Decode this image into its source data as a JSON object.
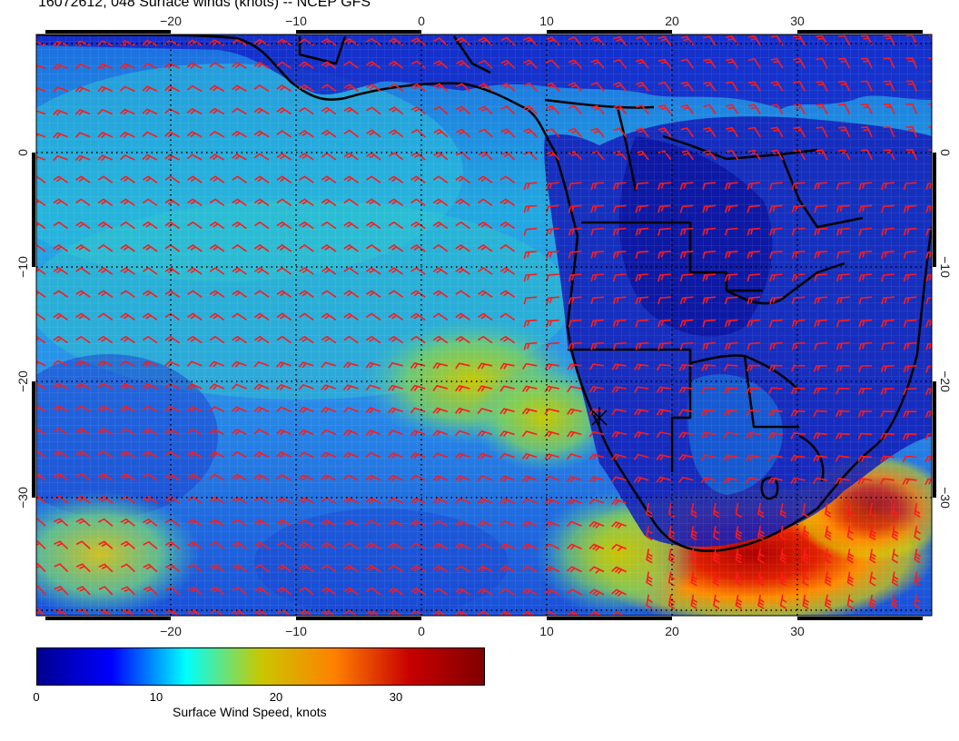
{
  "title": "16072612, 048 Surface winds (knots) -- NCEP GFS",
  "map": {
    "lon_range": [
      -30,
      42
    ],
    "lat_range": [
      -40,
      10
    ],
    "top_lon_ticks": [
      "−20",
      "−10",
      "0",
      "10",
      "20",
      "30"
    ],
    "bottom_lon_ticks": [
      "−20",
      "−10",
      "0",
      "10",
      "20",
      "30"
    ],
    "left_lat_ticks": [
      "0",
      "−10",
      "−20",
      "−30"
    ],
    "right_lat_ticks": [
      "0",
      "−10",
      "−20",
      "−30"
    ],
    "barb_color": "#ff1a1a",
    "coast_color": "#000000"
  },
  "colorbar": {
    "ticks": [
      "0",
      "10",
      "20",
      "30"
    ],
    "label": "Surface Wind Speed, knots",
    "range": [
      0,
      36
    ],
    "colors": [
      "#00008f",
      "#0000ff",
      "#00ffff",
      "#c8c800",
      "#ff8000",
      "#c80000",
      "#800000"
    ]
  }
}
